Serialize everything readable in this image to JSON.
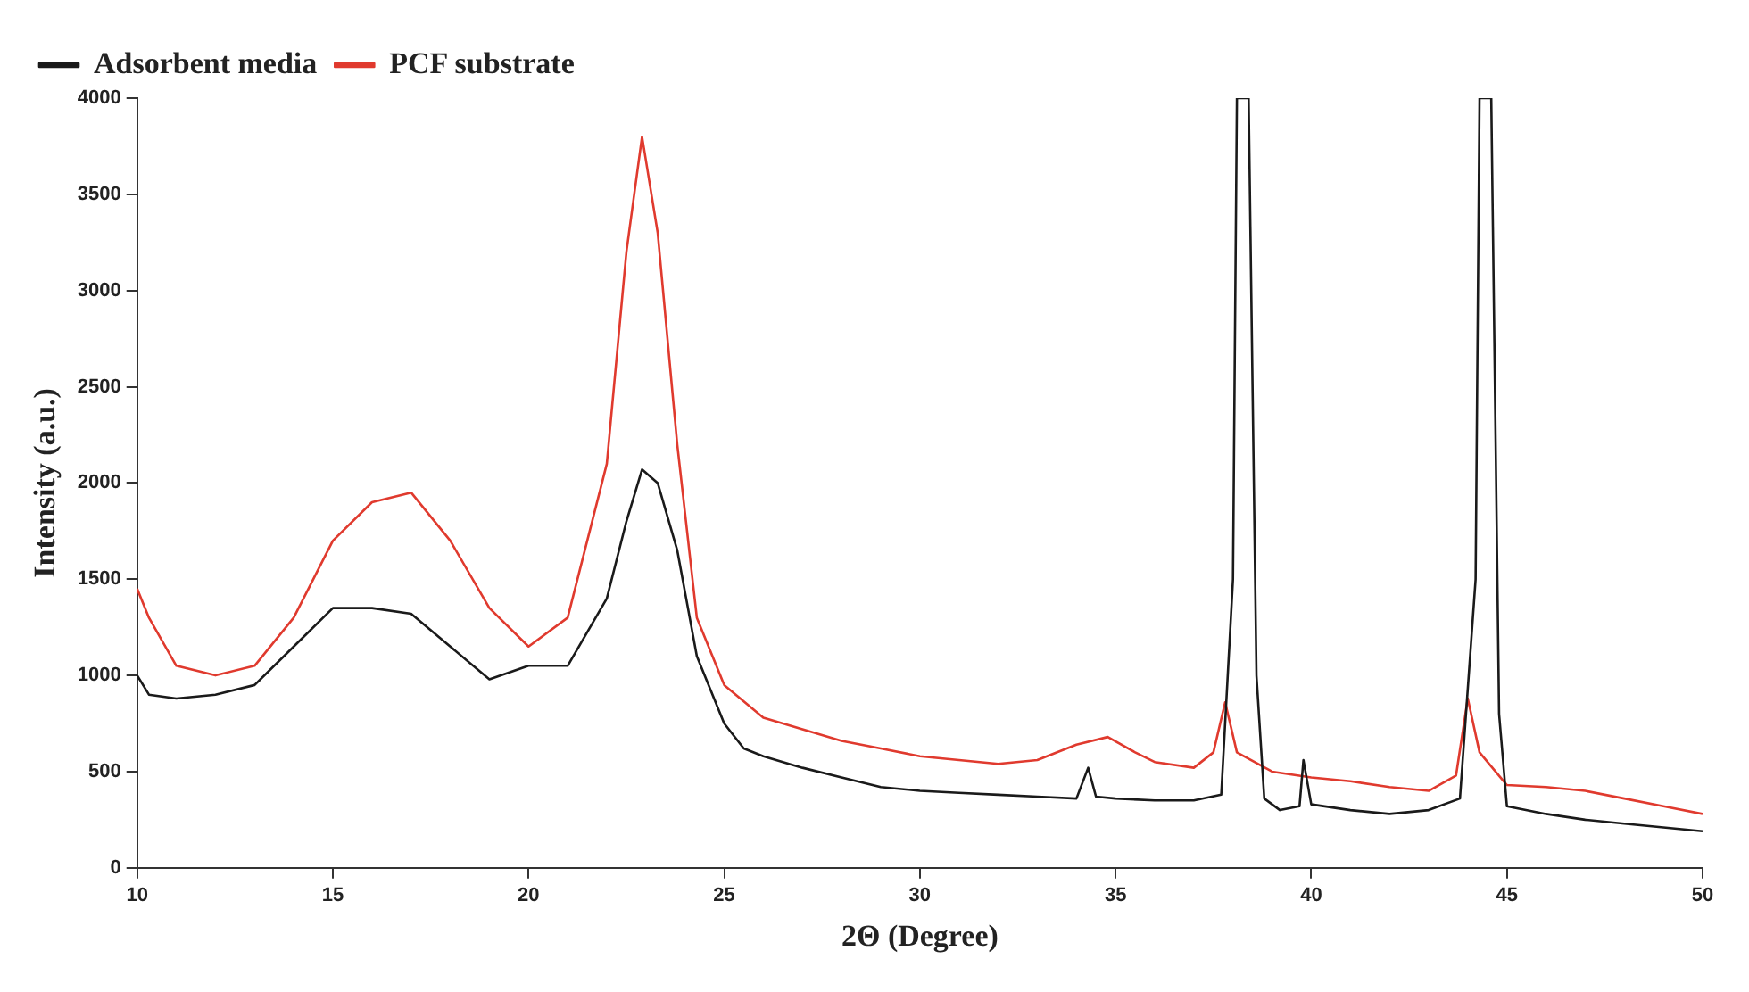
{
  "chart_data": {
    "type": "line",
    "xlabel": "2Θ (Degree)",
    "ylabel": "Intensity (a.u.)",
    "xlim": [
      10,
      50
    ],
    "xticks": [
      10,
      15,
      20,
      25,
      30,
      35,
      40,
      45,
      50
    ],
    "ylim": [
      0,
      4000
    ],
    "yticks": [
      0,
      500,
      1000,
      1500,
      2000,
      2500,
      3000,
      3500,
      4000
    ],
    "grid": false,
    "legend": "top left",
    "marker": "none",
    "line_style": "solid",
    "series": [
      {
        "name": "Adsorbent media",
        "color": "#1a1a1a",
        "x": [
          10,
          10.3,
          11,
          12,
          13,
          14,
          15,
          16,
          17,
          18,
          19,
          20,
          21,
          22,
          22.5,
          22.9,
          23.3,
          23.8,
          24.3,
          25,
          25.5,
          26,
          27,
          28,
          29,
          30,
          31,
          32,
          33,
          34,
          34.3,
          34.5,
          35,
          36,
          37,
          37.7,
          38,
          38.1,
          38.4,
          38.6,
          38.8,
          39.2,
          39.7,
          39.8,
          40,
          41,
          42,
          43,
          43.8,
          44.2,
          44.3,
          44.6,
          44.8,
          45,
          46,
          47,
          48,
          49,
          50
        ],
        "values": [
          1000,
          900,
          880,
          900,
          950,
          1150,
          1350,
          1350,
          1320,
          1150,
          980,
          1050,
          1050,
          1400,
          1800,
          2070,
          2000,
          1650,
          1100,
          750,
          620,
          580,
          520,
          470,
          420,
          400,
          390,
          380,
          370,
          360,
          520,
          370,
          360,
          350,
          350,
          380,
          1500,
          4000,
          4000,
          1000,
          360,
          300,
          320,
          560,
          330,
          300,
          280,
          300,
          360,
          1500,
          4000,
          4000,
          800,
          320,
          280,
          250,
          230,
          210,
          190
        ]
      },
      {
        "name": "PCF substrate",
        "color": "#e03a2e",
        "x": [
          10,
          10.3,
          11,
          12,
          13,
          14,
          15,
          16,
          17,
          18,
          19,
          20,
          21,
          22,
          22.5,
          22.9,
          23.3,
          23.8,
          24.3,
          25,
          26,
          27,
          28,
          29,
          30,
          31,
          32,
          33,
          34,
          34.8,
          35.5,
          36,
          37,
          37.5,
          37.8,
          38.1,
          39,
          40,
          41,
          42,
          43,
          43.7,
          44,
          44.3,
          45,
          46,
          47,
          48,
          49,
          50
        ],
        "values": [
          1450,
          1300,
          1050,
          1000,
          1050,
          1300,
          1700,
          1900,
          1950,
          1700,
          1350,
          1150,
          1300,
          2100,
          3200,
          3800,
          3300,
          2200,
          1300,
          950,
          780,
          720,
          660,
          620,
          580,
          560,
          540,
          560,
          640,
          680,
          600,
          550,
          520,
          600,
          860,
          600,
          500,
          470,
          450,
          420,
          400,
          480,
          880,
          600,
          430,
          420,
          400,
          360,
          320,
          280
        ]
      }
    ]
  }
}
